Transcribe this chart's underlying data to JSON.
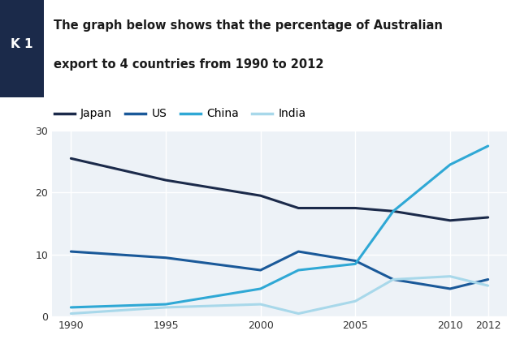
{
  "title_line1": "The graph below shows that the percentage of Australian",
  "title_line2": "export to 4 countries from 1990 to 2012",
  "sidebar_label": "K 1",
  "years": [
    1990,
    1995,
    2000,
    2002,
    2005,
    2007,
    2010,
    2012
  ],
  "japan": [
    25.5,
    22.0,
    19.5,
    17.5,
    17.5,
    17.0,
    15.5,
    16.0
  ],
  "us": [
    10.5,
    9.5,
    7.5,
    10.5,
    9.0,
    6.0,
    4.5,
    6.0
  ],
  "china": [
    1.5,
    2.0,
    4.5,
    7.5,
    8.5,
    17.0,
    24.5,
    27.5
  ],
  "india": [
    0.5,
    1.5,
    2.0,
    0.5,
    2.5,
    6.0,
    6.5,
    5.0
  ],
  "japan_color": "#1b2a4a",
  "us_color": "#1a5999",
  "china_color": "#2fa8d5",
  "india_color": "#a8d8ea",
  "background_color": "#ffffff",
  "plot_bg_color": "#edf2f7",
  "grid_color": "#ffffff",
  "ylim": [
    0,
    30
  ],
  "yticks": [
    0,
    10,
    20,
    30
  ],
  "xticks": [
    1990,
    1995,
    2000,
    2005,
    2010,
    2012
  ],
  "legend_labels": [
    "Japan",
    "US",
    "China",
    "India"
  ],
  "linewidth": 2.2,
  "title_fontsize": 10.5,
  "legend_fontsize": 10,
  "sidebar_color": "#1b2a4a",
  "sidebar_text_color": "#ffffff",
  "tick_fontsize": 9
}
